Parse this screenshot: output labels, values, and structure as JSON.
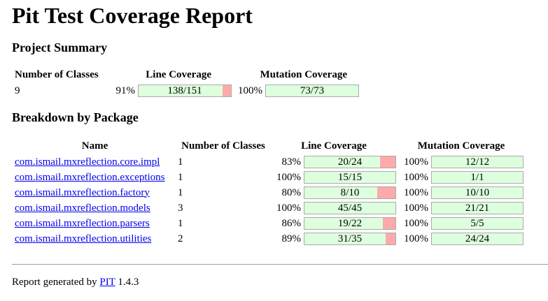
{
  "title": "Pit Test Coverage Report",
  "summary": {
    "heading": "Project Summary",
    "headers": {
      "classes": "Number of Classes",
      "line": "Line Coverage",
      "mutation": "Mutation Coverage"
    },
    "classes": "9",
    "line_pct": "91%",
    "line_ratio": "138/151",
    "line_fill": 0.91,
    "mutation_pct": "100%",
    "mutation_ratio": "73/73",
    "mutation_fill": 1.0
  },
  "breakdown": {
    "heading": "Breakdown by Package",
    "headers": {
      "name": "Name",
      "classes": "Number of Classes",
      "line": "Line Coverage",
      "mutation": "Mutation Coverage"
    },
    "rows": [
      {
        "name": "com.ismail.mxreflection.core.impl",
        "classes": "1",
        "line_pct": "83%",
        "line_ratio": "20/24",
        "line_fill": 0.83,
        "mut_pct": "100%",
        "mut_ratio": "12/12",
        "mut_fill": 1.0
      },
      {
        "name": "com.ismail.mxreflection.exceptions",
        "classes": "1",
        "line_pct": "100%",
        "line_ratio": "15/15",
        "line_fill": 1.0,
        "mut_pct": "100%",
        "mut_ratio": "1/1",
        "mut_fill": 1.0
      },
      {
        "name": "com.ismail.mxreflection.factory",
        "classes": "1",
        "line_pct": "80%",
        "line_ratio": "8/10",
        "line_fill": 0.8,
        "mut_pct": "100%",
        "mut_ratio": "10/10",
        "mut_fill": 1.0
      },
      {
        "name": "com.ismail.mxreflection.models",
        "classes": "3",
        "line_pct": "100%",
        "line_ratio": "45/45",
        "line_fill": 1.0,
        "mut_pct": "100%",
        "mut_ratio": "21/21",
        "mut_fill": 1.0
      },
      {
        "name": "com.ismail.mxreflection.parsers",
        "classes": "1",
        "line_pct": "86%",
        "line_ratio": "19/22",
        "line_fill": 0.86,
        "mut_pct": "100%",
        "mut_ratio": "5/5",
        "mut_fill": 1.0
      },
      {
        "name": "com.ismail.mxreflection.utilities",
        "classes": "2",
        "line_pct": "89%",
        "line_ratio": "31/35",
        "line_fill": 0.89,
        "mut_pct": "100%",
        "mut_ratio": "24/24",
        "mut_fill": 1.0
      }
    ]
  },
  "footer": {
    "prefix": "Report generated by",
    "link": "PIT",
    "version": "1.4.3"
  },
  "colors": {
    "covered": "#ddffdd",
    "uncovered": "#ffaaaa",
    "link": "#0000ee"
  }
}
